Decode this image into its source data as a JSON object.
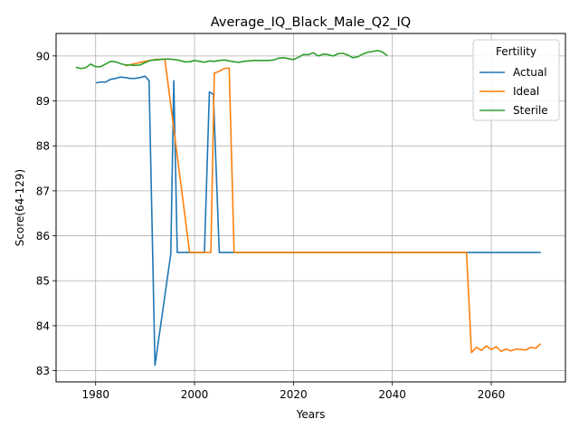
{
  "chart_data": {
    "type": "line",
    "title": "Average_IQ_Black_Male_Q2_IQ",
    "xlabel": "Years",
    "ylabel": "Score(64-129)",
    "xlim": [
      1972,
      2075
    ],
    "ylim": [
      82.75,
      90.5
    ],
    "xticks": [
      1980,
      2000,
      2020,
      2040,
      2060
    ],
    "yticks": [
      83,
      84,
      85,
      86,
      87,
      88,
      89,
      90
    ],
    "grid": true,
    "legend": {
      "title": "Fertility",
      "placement": "top-right"
    },
    "series": [
      {
        "name": "Actual",
        "color": "#1f77b4",
        "points": [
          [
            1980,
            89.4
          ],
          [
            1981,
            89.42
          ],
          [
            1982,
            89.42
          ],
          [
            1983,
            89.48
          ],
          [
            1984,
            89.5
          ],
          [
            1985,
            89.53
          ],
          [
            1986,
            89.52
          ],
          [
            1987,
            89.5
          ],
          [
            1988,
            89.5
          ],
          [
            1989,
            89.52
          ],
          [
            1990,
            89.55
          ],
          [
            1990.8,
            89.45
          ],
          [
            1992,
            83.12
          ],
          [
            1995.2,
            85.6
          ],
          [
            1995.8,
            89.45
          ],
          [
            1996.5,
            85.63
          ],
          [
            2002,
            85.63
          ],
          [
            2003,
            89.2
          ],
          [
            2003.8,
            89.15
          ],
          [
            2005,
            85.63
          ],
          [
            2020,
            85.63
          ],
          [
            2040,
            85.63
          ],
          [
            2060,
            85.63
          ],
          [
            2070,
            85.63
          ]
        ]
      },
      {
        "name": "Ideal",
        "color": "#ff7f0e",
        "points": [
          [
            1986,
            89.78
          ],
          [
            1988,
            89.83
          ],
          [
            1990,
            89.88
          ],
          [
            1992,
            89.92
          ],
          [
            1994,
            89.93
          ],
          [
            1999,
            85.63
          ],
          [
            2003.3,
            85.63
          ],
          [
            2004,
            89.62
          ],
          [
            2005,
            89.66
          ],
          [
            2006,
            89.72
          ],
          [
            2007,
            89.73
          ],
          [
            2008,
            85.63
          ],
          [
            2020,
            85.63
          ],
          [
            2040,
            85.63
          ],
          [
            2055,
            85.63
          ],
          [
            2056,
            83.4
          ],
          [
            2057,
            83.52
          ],
          [
            2058,
            83.45
          ],
          [
            2059,
            83.55
          ],
          [
            2060,
            83.47
          ],
          [
            2061,
            83.53
          ],
          [
            2062,
            83.43
          ],
          [
            2063,
            83.48
          ],
          [
            2064,
            83.44
          ],
          [
            2065,
            83.48
          ],
          [
            2066,
            83.47
          ],
          [
            2067,
            83.46
          ],
          [
            2068,
            83.52
          ],
          [
            2069,
            83.5
          ],
          [
            2070,
            83.6
          ]
        ]
      },
      {
        "name": "Sterile",
        "color": "#2ca02c",
        "points": [
          [
            1976,
            89.75
          ],
          [
            1977,
            89.72
          ],
          [
            1978,
            89.74
          ],
          [
            1979,
            89.82
          ],
          [
            1980,
            89.76
          ],
          [
            1981,
            89.76
          ],
          [
            1982,
            89.82
          ],
          [
            1983,
            89.88
          ],
          [
            1984,
            89.87
          ],
          [
            1985,
            89.83
          ],
          [
            1986,
            89.8
          ],
          [
            1987,
            89.8
          ],
          [
            1988,
            89.79
          ],
          [
            1989,
            89.8
          ],
          [
            1990,
            89.85
          ],
          [
            1991,
            89.9
          ],
          [
            1992,
            89.91
          ],
          [
            1993,
            89.92
          ],
          [
            1994,
            89.93
          ],
          [
            1995,
            89.93
          ],
          [
            1996,
            89.92
          ],
          [
            1997,
            89.9
          ],
          [
            1998,
            89.87
          ],
          [
            1999,
            89.87
          ],
          [
            2000,
            89.9
          ],
          [
            2001,
            89.88
          ],
          [
            2002,
            89.86
          ],
          [
            2003,
            89.89
          ],
          [
            2004,
            89.88
          ],
          [
            2005,
            89.9
          ],
          [
            2006,
            89.91
          ],
          [
            2007,
            89.89
          ],
          [
            2008,
            89.87
          ],
          [
            2009,
            89.86
          ],
          [
            2010,
            89.88
          ],
          [
            2011,
            89.89
          ],
          [
            2012,
            89.9
          ],
          [
            2013,
            89.9
          ],
          [
            2014,
            89.9
          ],
          [
            2015,
            89.9
          ],
          [
            2016,
            89.91
          ],
          [
            2017,
            89.95
          ],
          [
            2018,
            89.96
          ],
          [
            2019,
            89.94
          ],
          [
            2020,
            89.92
          ],
          [
            2021,
            89.97
          ],
          [
            2022,
            90.03
          ],
          [
            2023,
            90.03
          ],
          [
            2024,
            90.07
          ],
          [
            2025,
            90.0
          ],
          [
            2026,
            90.04
          ],
          [
            2027,
            90.03
          ],
          [
            2028,
            90.0
          ],
          [
            2029,
            90.05
          ],
          [
            2030,
            90.06
          ],
          [
            2031,
            90.02
          ],
          [
            2032,
            89.96
          ],
          [
            2033,
            89.98
          ],
          [
            2034,
            90.04
          ],
          [
            2035,
            90.08
          ],
          [
            2036,
            90.1
          ],
          [
            2037,
            90.12
          ],
          [
            2038,
            90.09
          ],
          [
            2039,
            90.0
          ]
        ]
      }
    ]
  }
}
